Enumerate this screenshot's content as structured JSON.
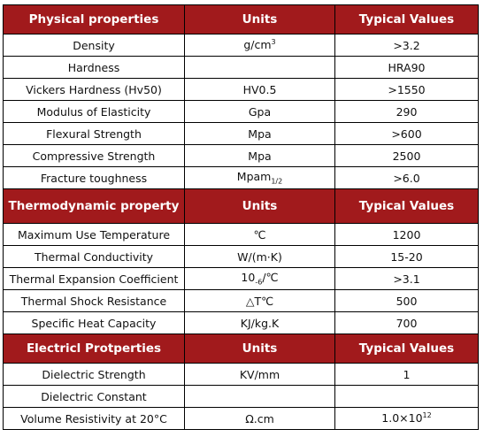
{
  "sections": [
    {
      "header": [
        "Physical properties",
        "Units",
        "Typical Values"
      ],
      "rows": [
        [
          "Density",
          {
            "base": "g/cm",
            "sup": "3"
          },
          ">3.2"
        ],
        [
          "Hardness",
          null,
          "HRA90"
        ],
        [
          "Vickers Hardness (Hv50)",
          "HV0.5",
          ">1550"
        ],
        [
          "Modulus of Elasticity",
          "Gpa",
          "290"
        ],
        [
          "Flexural Strength",
          "Mpa",
          ">600"
        ],
        [
          "Compressive Strength",
          "Mpa",
          "2500"
        ],
        [
          "Fracture toughness",
          {
            "base": "Mpam",
            "sub": "1/2"
          },
          ">6.0"
        ]
      ]
    },
    {
      "header": [
        "Thermodynamic property",
        "Units",
        "Typical Values"
      ],
      "rows": [
        [
          "Maximum Use Temperature",
          "℃",
          "1200"
        ],
        [
          "Thermal Conductivity",
          "W/(m·K)",
          "15-20"
        ],
        [
          "Thermal Expansion Coefficient",
          {
            "base": "10",
            "sub": "-6",
            "tail": "/℃"
          },
          ">3.1"
        ],
        [
          "Thermal Shock Resistance",
          "△T℃",
          "500"
        ],
        [
          "Specific Heat Capacity",
          "KJ/kg.K",
          "700"
        ]
      ]
    },
    {
      "header": [
        "Electricl Protperties",
        "Units",
        "Typical Values"
      ],
      "rows": [
        [
          "Dielectric Strength",
          "KV/mm",
          "1"
        ],
        [
          "Dielectric Constant",
          null,
          null
        ],
        [
          "Volume Resistivity at 20°C",
          "Ω.cm",
          {
            "base": "1.0×10",
            "sup": "12"
          }
        ]
      ]
    }
  ]
}
